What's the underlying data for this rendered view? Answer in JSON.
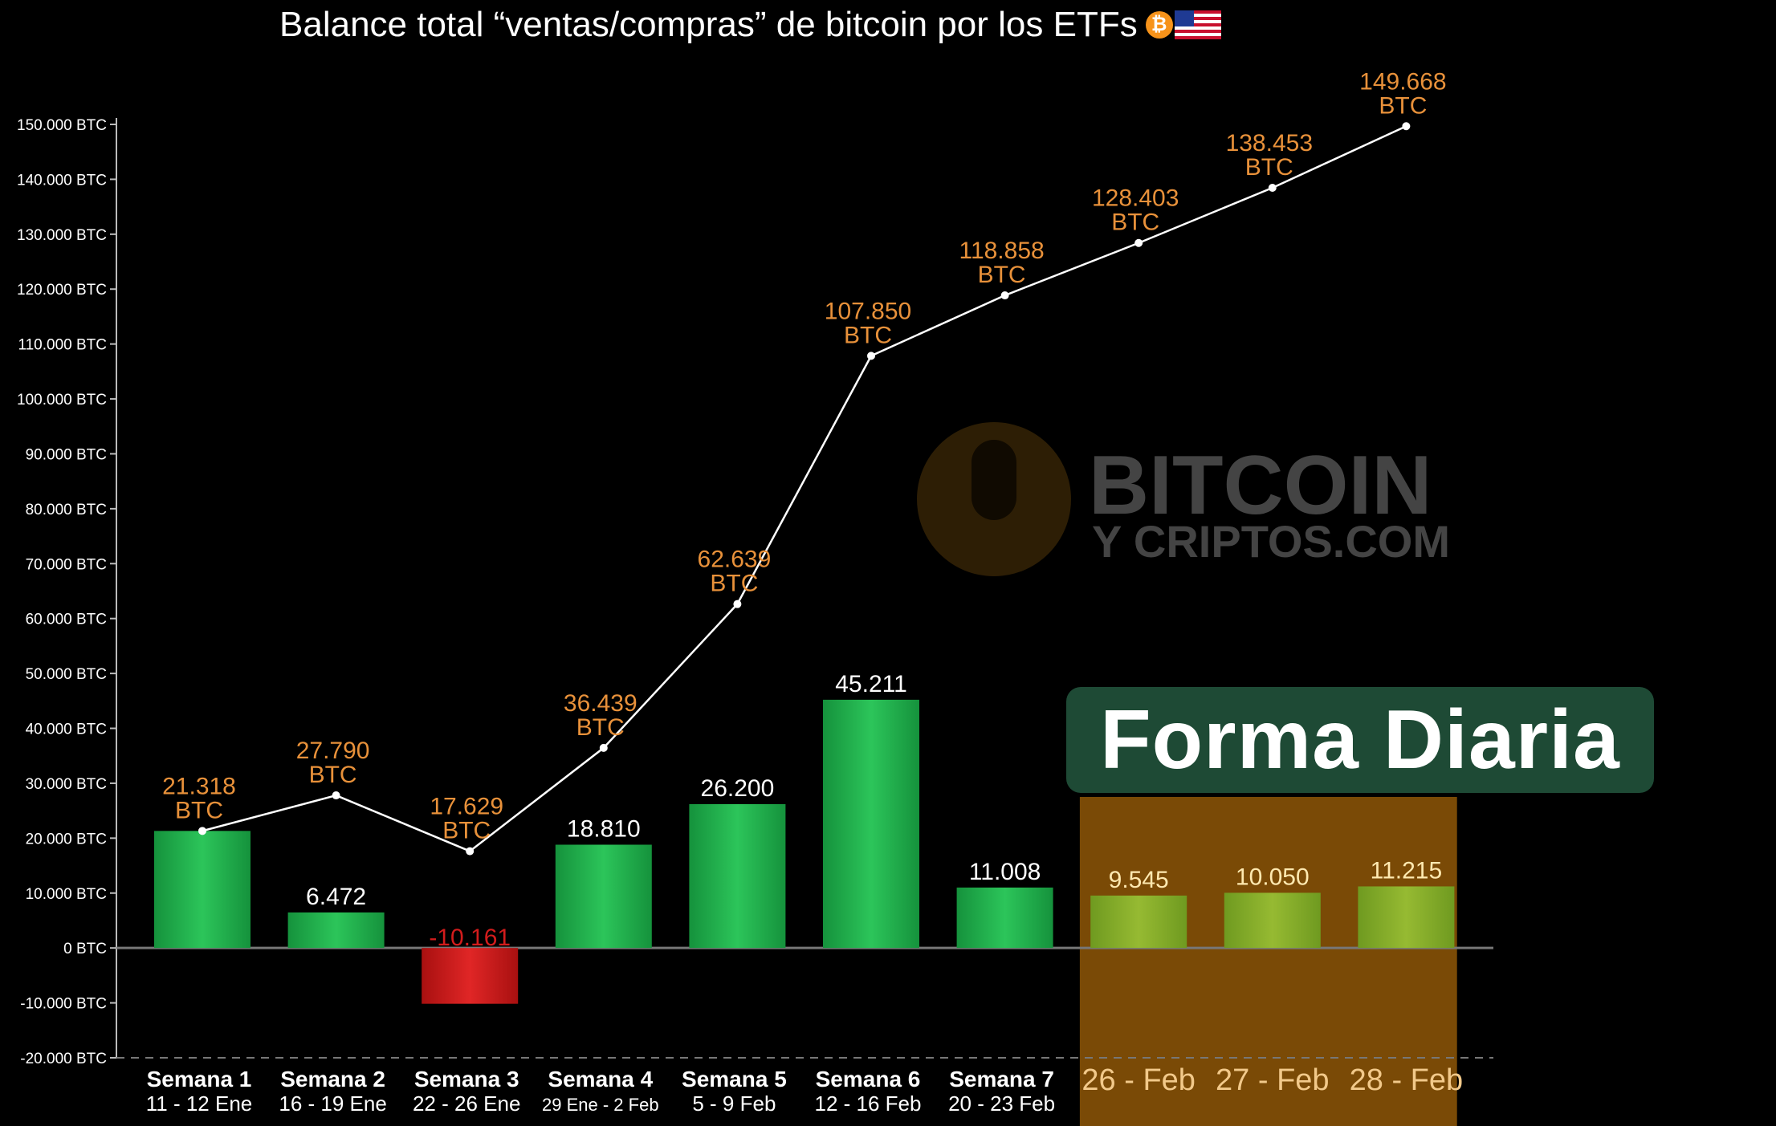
{
  "title": "Balance total “ventas/compras” de bitcoin por los ETFs",
  "title_icons": [
    "bitcoin-icon",
    "us-flag-icon"
  ],
  "overlay_label": "Forma Diaria",
  "watermark": {
    "line1": "BITCOIN",
    "line2": "Y CRIPTOS.COM"
  },
  "colors": {
    "background": "#000000",
    "bar_positive": "#1fa84a",
    "bar_negative": "#d31c1c",
    "bar_daily": "#8aae2a",
    "daily_band": "#7a4a06",
    "cumulative_label": "#e8913a",
    "line": "#ffffff",
    "overlay_box": "#1e4a35"
  },
  "chart_data": {
    "type": "bar",
    "title": "Balance total “ventas/compras” de bitcoin por los ETFs",
    "y_tick_labels": [
      "150.000 BTC",
      "140.000 BTC",
      "130.000 BTC",
      "120.000 BTC",
      "110.000 BTC",
      "100.000 BTC",
      "90.000 BTC",
      "80.000 BTC",
      "70.000 BTC",
      "60.000 BTC",
      "50.000 BTC",
      "40.000 BTC",
      "30.000 BTC",
      "20.000 BTC",
      "10.000 BTC",
      "0 BTC",
      "-10.000 BTC",
      "-20.000 BTC"
    ],
    "y_ticks": [
      150000,
      140000,
      130000,
      120000,
      110000,
      100000,
      90000,
      80000,
      70000,
      60000,
      50000,
      40000,
      30000,
      20000,
      10000,
      0,
      -10000,
      -20000
    ],
    "ylim": [
      -20000,
      150000
    ],
    "grid": false,
    "categories": [
      {
        "line1": "Semana 1",
        "line2": "11 - 12 Ene"
      },
      {
        "line1": "Semana 2",
        "line2": "16 - 19 Ene"
      },
      {
        "line1": "Semana 3",
        "line2": "22 - 26 Ene"
      },
      {
        "line1": "Semana 4",
        "line2": "29 Ene - 2 Feb"
      },
      {
        "line1": "Semana 5",
        "line2": "5 - 9 Feb"
      },
      {
        "line1": "Semana 6",
        "line2": "12 - 16 Feb"
      },
      {
        "line1": "Semana 7",
        "line2": "20 - 23 Feb"
      },
      {
        "line1": "26 - Feb",
        "line2": ""
      },
      {
        "line1": "27 - Feb",
        "line2": ""
      },
      {
        "line1": "28 - Feb",
        "line2": ""
      }
    ],
    "bars": {
      "values": [
        21318,
        6472,
        -10161,
        18810,
        26200,
        45211,
        11008,
        9545,
        10050,
        11215
      ],
      "labels": [
        "",
        "6.472",
        "-10.161",
        "18.810",
        "26.200",
        "45.211",
        "11.008",
        "9.545",
        "10.050",
        "11.215"
      ]
    },
    "line": {
      "x_index": [
        0,
        1,
        2,
        3,
        4,
        5,
        6,
        7,
        8,
        9
      ],
      "values": [
        21318,
        27790,
        17629,
        36439,
        62639,
        107850,
        118858,
        128403,
        138453,
        149668
      ],
      "labels": [
        "21.318",
        "27.790",
        "17.629",
        "36.439",
        "62.639",
        "107.850",
        "118.858",
        "128.403",
        "138.453",
        "149.668"
      ],
      "unit_label": "BTC"
    },
    "daily_highlight": {
      "from_index": 7,
      "to_index": 9
    }
  }
}
